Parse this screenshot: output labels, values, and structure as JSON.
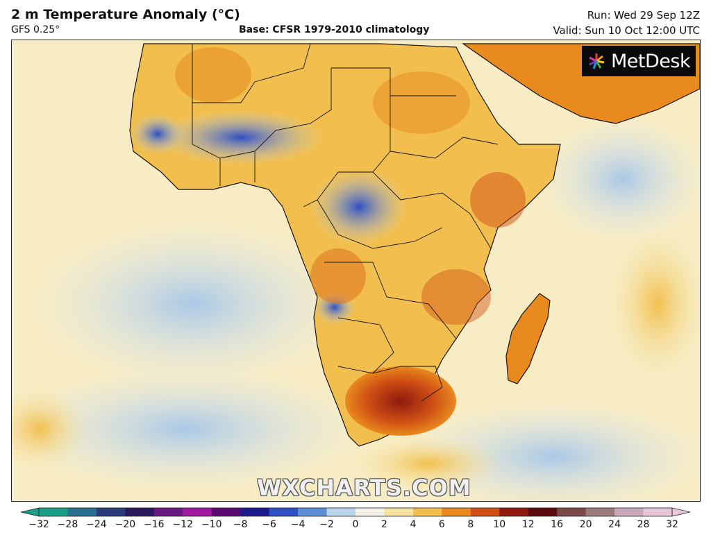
{
  "header": {
    "title": "2 m Temperature Anomaly (°C)",
    "model": "GFS 0.25°",
    "base": "Base: CFSR 1979-2010 climatology",
    "run": "Run: Wed 29 Sep 12Z",
    "valid": "Valid: Sun 10 Oct 12:00 UTC"
  },
  "logo": {
    "text": "MetDesk"
  },
  "watermark": "WXCHARTS.COM",
  "colorbar": {
    "ticks": [
      "−32",
      "−28",
      "−24",
      "−20",
      "−16",
      "−12",
      "−10",
      "−8",
      "−6",
      "−4",
      "−2",
      "0",
      "2",
      "4",
      "6",
      "8",
      "10",
      "12",
      "16",
      "20",
      "24",
      "28",
      "32"
    ],
    "colors": [
      "#1a9e86",
      "#2a6f8f",
      "#2c3b7a",
      "#2a1a5c",
      "#6a1a80",
      "#a01aa0",
      "#5b0a6e",
      "#1e1a8c",
      "#2f4fc4",
      "#5c8fd6",
      "#bcd6ee",
      "#f4f1e6",
      "#f6e3a2",
      "#f2bf4e",
      "#e88a1e",
      "#cf4f14",
      "#8f1a10",
      "#5a0c0c",
      "#7a4a4a",
      "#9a7a7a",
      "#c8a8b8",
      "#e8c8d8"
    ]
  }
}
